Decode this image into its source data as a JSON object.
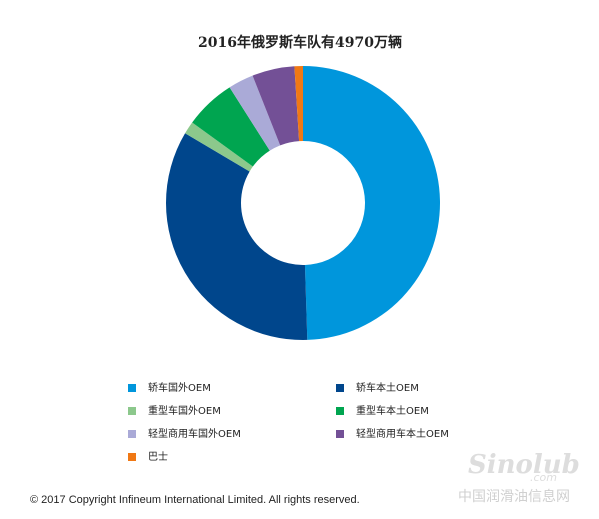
{
  "chart_data": {
    "type": "donut",
    "title": "2016年俄罗斯车队有4970万辆",
    "categories": [
      "轿车国外OEM",
      "轿车本土OEM",
      "重型车国外OEM",
      "重型车本土OEM",
      "轻型商用车国外OEM",
      "轻型商用车本土OEM",
      "巴士"
    ],
    "values": [
      49.5,
      34,
      1.5,
      6,
      3,
      5,
      1
    ],
    "colors": [
      "#0096dc",
      "#00468c",
      "#8cc88c",
      "#00a550",
      "#aaaad7",
      "#735096",
      "#f07814"
    ]
  },
  "footer": "© 2017 Copyright Infineum International Limited. All rights reserved.",
  "watermark": {
    "logo": "Sinolub",
    "domain": ".com",
    "site": "中国润滑油信息网"
  }
}
